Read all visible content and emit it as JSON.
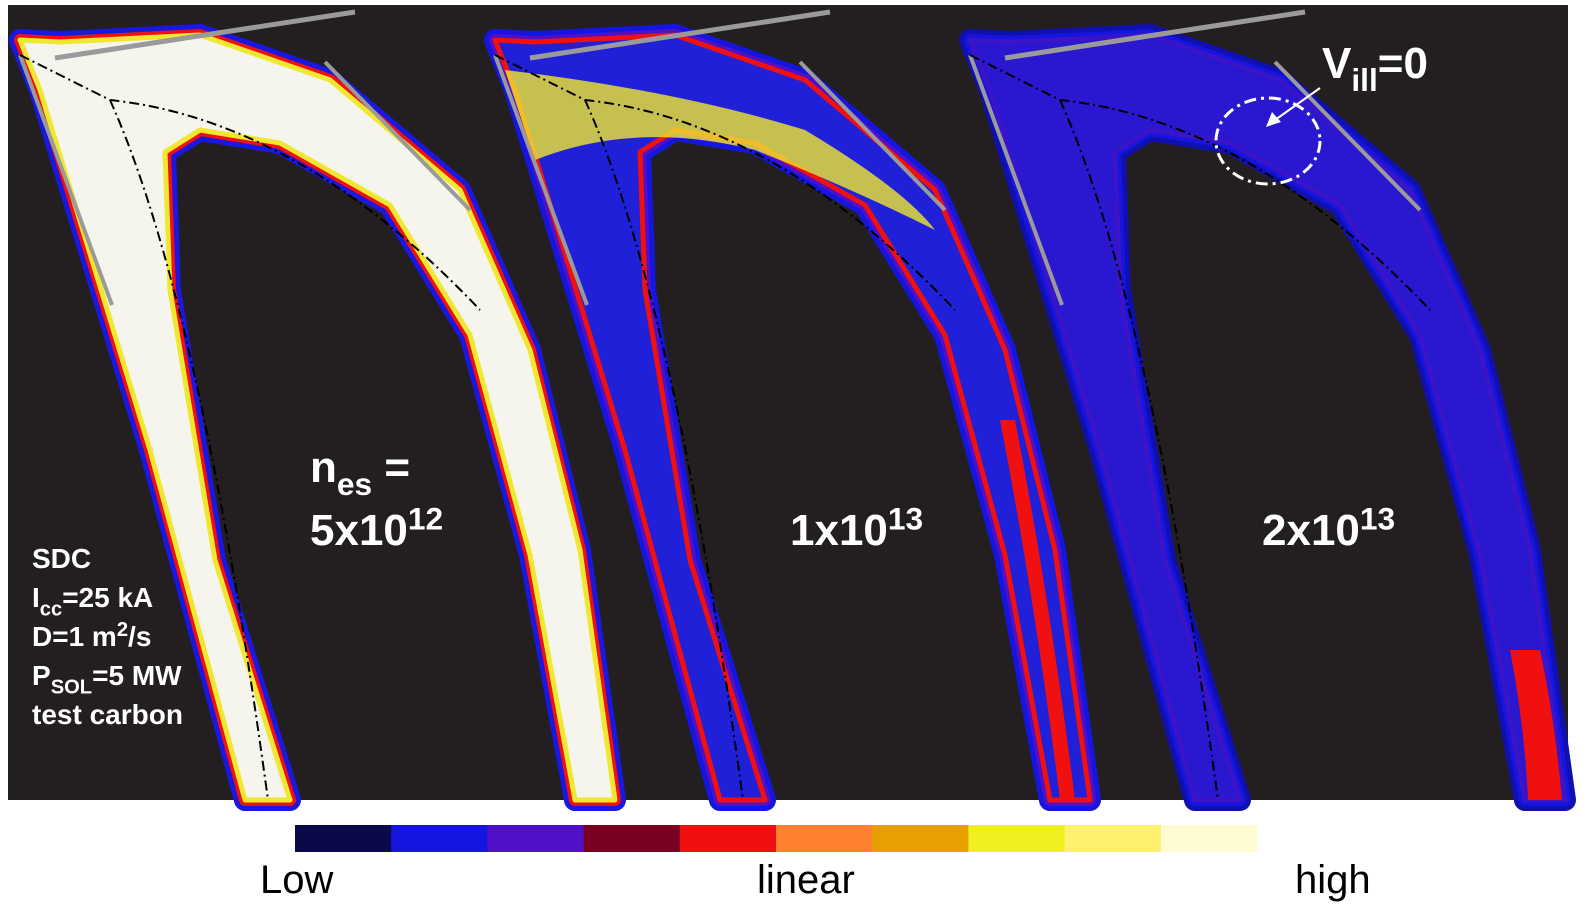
{
  "parameters": [
    [
      {
        "text": "SDC"
      }
    ],
    [
      {
        "text": "I"
      },
      {
        "sub": "cc"
      },
      {
        "text": "=25 kA"
      }
    ],
    [
      {
        "text": "D=1 m"
      },
      {
        "sup": "2"
      },
      {
        "text": "/s"
      }
    ],
    [
      {
        "text": "P"
      },
      {
        "sub": "SOL"
      },
      {
        "text": "=5 MW"
      }
    ],
    [
      {
        "text": "test carbon"
      }
    ]
  ],
  "panels": [
    {
      "heading": [
        {
          "text": "n"
        },
        {
          "sub": "es"
        },
        {
          "text": " ="
        }
      ],
      "label": [
        {
          "text": "5x10"
        },
        {
          "sup": "12"
        }
      ]
    },
    {
      "label": [
        {
          "text": "1x10"
        },
        {
          "sup": "13"
        }
      ]
    },
    {
      "label": [
        {
          "text": "2x10"
        },
        {
          "sup": "13"
        }
      ],
      "annotation": [
        {
          "text": "V"
        },
        {
          "sub": "ill"
        },
        {
          "text": "=0"
        }
      ]
    }
  ],
  "colorbar": {
    "colors": [
      "#0a0a4a",
      "#1515e0",
      "#5010c8",
      "#7a0020",
      "#f01010",
      "#ff8030",
      "#e8a000",
      "#f0f020",
      "#fff070",
      "#fffbd0"
    ],
    "labels": [
      "Low",
      "linear",
      "high"
    ]
  }
}
